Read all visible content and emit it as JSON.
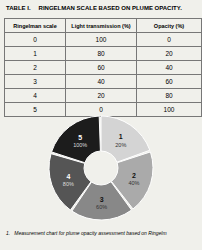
{
  "chart_data": {
    "type": "pie",
    "title": "TABLE I.",
    "subtitle": "RINGELMAN SCALE BASED ON PLUME OPACITY.",
    "table": {
      "headers": [
        "Ringelman scale",
        "Light transmission (%)",
        "Opacity (%)"
      ],
      "rows": [
        [
          "0",
          "100",
          "0"
        ],
        [
          "1",
          "80",
          "20"
        ],
        [
          "2",
          "60",
          "40"
        ],
        [
          "3",
          "40",
          "60"
        ],
        [
          "4",
          "20",
          "80"
        ],
        [
          "5",
          "0",
          "100"
        ]
      ]
    },
    "categories": [
      "1",
      "2",
      "3",
      "4",
      "5"
    ],
    "values": [
      1,
      1,
      1,
      1,
      1
    ],
    "slice_labels": [
      "20%",
      "40%",
      "60%",
      "80%",
      "100%"
    ],
    "colors": [
      "#d4d4d4",
      "#aaaaaa",
      "#888888",
      "#555555",
      "#1c1c1c"
    ],
    "annotations": [
      "1.   Measurement chart for plume opacity assessment based on Ringelm"
    ]
  }
}
